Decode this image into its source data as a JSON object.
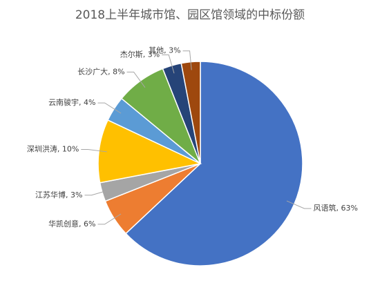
{
  "chart_data": {
    "type": "pie",
    "title": "2018上半年城市馆、园区馆领域的中标份额",
    "values": [
      63,
      6,
      3,
      10,
      4,
      8,
      3,
      3
    ],
    "value_labels": [
      "风语筑, 63%",
      "华凯创意, 6%",
      "江苏华博, 3%",
      "深圳洪涛, 10%",
      "云南骏宇, 4%",
      "长沙广大, 8%",
      "杰尔斯, 3%",
      "其他, 3%"
    ],
    "colors": [
      "#4472c4",
      "#ed7d31",
      "#a5a5a5",
      "#ffc000",
      "#5b9bd5",
      "#70ad47",
      "#264478",
      "#9e480e"
    ]
  }
}
